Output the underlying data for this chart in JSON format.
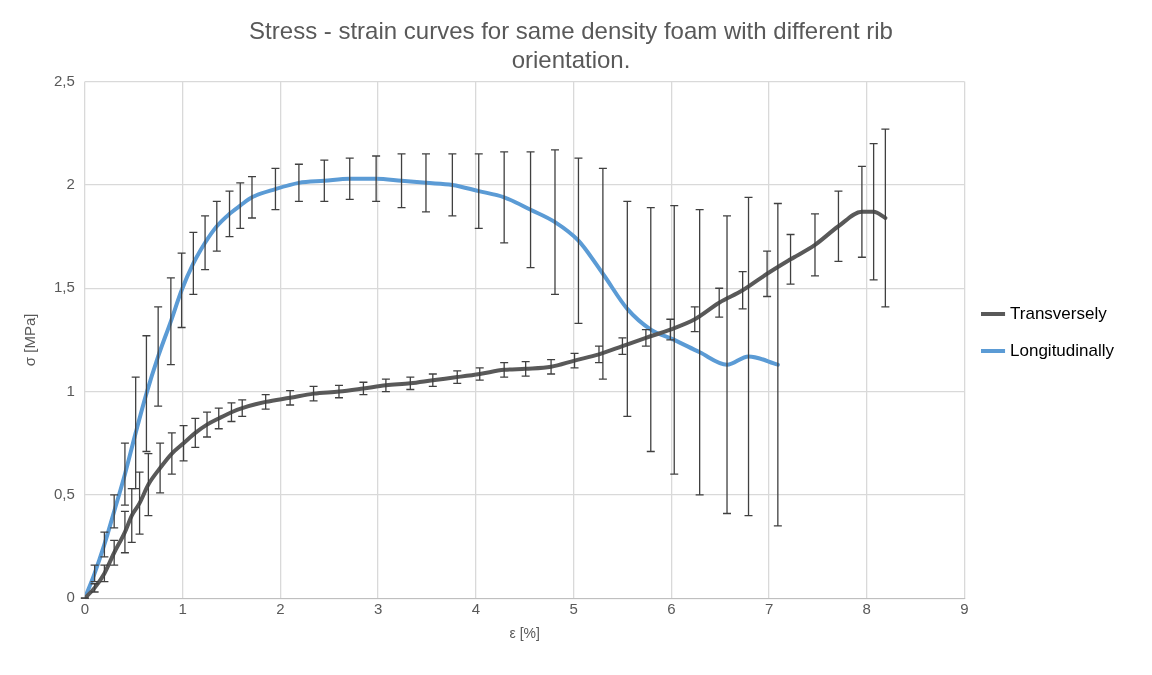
{
  "chart_data": {
    "type": "line",
    "title": "Stress - strain curves for same density foam with different rib orientation.",
    "xlabel": "ε [%]",
    "ylabel": "σ [MPa]",
    "xlim": [
      0,
      9
    ],
    "xticks": [
      0,
      1,
      2,
      3,
      4,
      5,
      6,
      7,
      8,
      9
    ],
    "ylim": [
      0,
      2.5
    ],
    "yticks": [
      0,
      {
        "value": 0.5,
        "label": "0,5"
      },
      1,
      {
        "value": 1.5,
        "label": "1,5"
      },
      2,
      {
        "value": 2.5,
        "label": "2,5"
      }
    ],
    "grid": true,
    "legend": "right",
    "marker": "none",
    "line_style": "solid",
    "series": [
      {
        "name": "Transversely",
        "color": "#595959",
        "x": [
          0,
          0.1,
          0.2,
          0.3,
          0.41,
          0.48,
          0.56,
          0.65,
          0.77,
          0.89,
          1.01,
          1.13,
          1.25,
          1.37,
          1.5,
          1.61,
          1.85,
          2.1,
          2.34,
          2.6,
          2.85,
          3.08,
          3.33,
          3.56,
          3.81,
          4.04,
          4.29,
          4.51,
          4.77,
          5.01,
          5.26,
          5.5,
          5.74,
          5.99,
          6.24,
          6.49,
          6.73,
          6.98,
          7.22,
          7.47,
          7.71,
          7.95,
          8.07,
          8.19
        ],
        "values": [
          0,
          0.05,
          0.12,
          0.22,
          0.32,
          0.4,
          0.46,
          0.55,
          0.63,
          0.7,
          0.75,
          0.8,
          0.84,
          0.87,
          0.9,
          0.92,
          0.95,
          0.97,
          0.99,
          1,
          1.015,
          1.03,
          1.04,
          1.055,
          1.07,
          1.085,
          1.105,
          1.11,
          1.12,
          1.15,
          1.18,
          1.22,
          1.26,
          1.3,
          1.35,
          1.43,
          1.49,
          1.57,
          1.64,
          1.71,
          1.8,
          1.87,
          1.87,
          1.84
        ],
        "errors": [
          0,
          0.02,
          0.04,
          0.06,
          0.1,
          0.13,
          0.15,
          0.15,
          0.12,
          0.1,
          0.085,
          0.07,
          0.06,
          0.05,
          0.045,
          0.04,
          0.035,
          0.035,
          0.035,
          0.03,
          0.03,
          0.03,
          0.03,
          0.03,
          0.03,
          0.03,
          0.035,
          0.035,
          0.035,
          0.035,
          0.04,
          0.04,
          0.04,
          0.05,
          0.06,
          0.07,
          0.09,
          0.11,
          0.12,
          0.15,
          0.17,
          0.22,
          0.33,
          0.43
        ]
      },
      {
        "name": "Longitudinally",
        "color": "#5b9bd5",
        "x": [
          0,
          0.1,
          0.2,
          0.3,
          0.41,
          0.52,
          0.63,
          0.75,
          0.88,
          0.99,
          1.11,
          1.23,
          1.35,
          1.48,
          1.59,
          1.71,
          1.95,
          2.19,
          2.45,
          2.71,
          2.98,
          3.24,
          3.49,
          3.76,
          4.03,
          4.29,
          4.56,
          4.81,
          5.05,
          5.3,
          5.55,
          5.79,
          6.03,
          6.29,
          6.57,
          6.79,
          7.09
        ],
        "values": [
          0,
          0.12,
          0.26,
          0.42,
          0.6,
          0.8,
          0.99,
          1.17,
          1.34,
          1.49,
          1.62,
          1.72,
          1.8,
          1.86,
          1.9,
          1.94,
          1.98,
          2.01,
          2.02,
          2.03,
          2.03,
          2.02,
          2.01,
          2,
          1.97,
          1.94,
          1.88,
          1.82,
          1.73,
          1.57,
          1.4,
          1.3,
          1.25,
          1.19,
          1.13,
          1.17,
          1.13
        ],
        "errors": [
          0,
          0.04,
          0.06,
          0.08,
          0.15,
          0.27,
          0.28,
          0.24,
          0.21,
          0.18,
          0.15,
          0.13,
          0.12,
          0.11,
          0.11,
          0.1,
          0.1,
          0.09,
          0.1,
          0.1,
          0.11,
          0.13,
          0.14,
          0.15,
          0.18,
          0.22,
          0.28,
          0.35,
          0.4,
          0.51,
          0.52,
          0.59,
          0.65,
          0.69,
          0.72,
          0.77,
          0.78
        ]
      }
    ]
  }
}
